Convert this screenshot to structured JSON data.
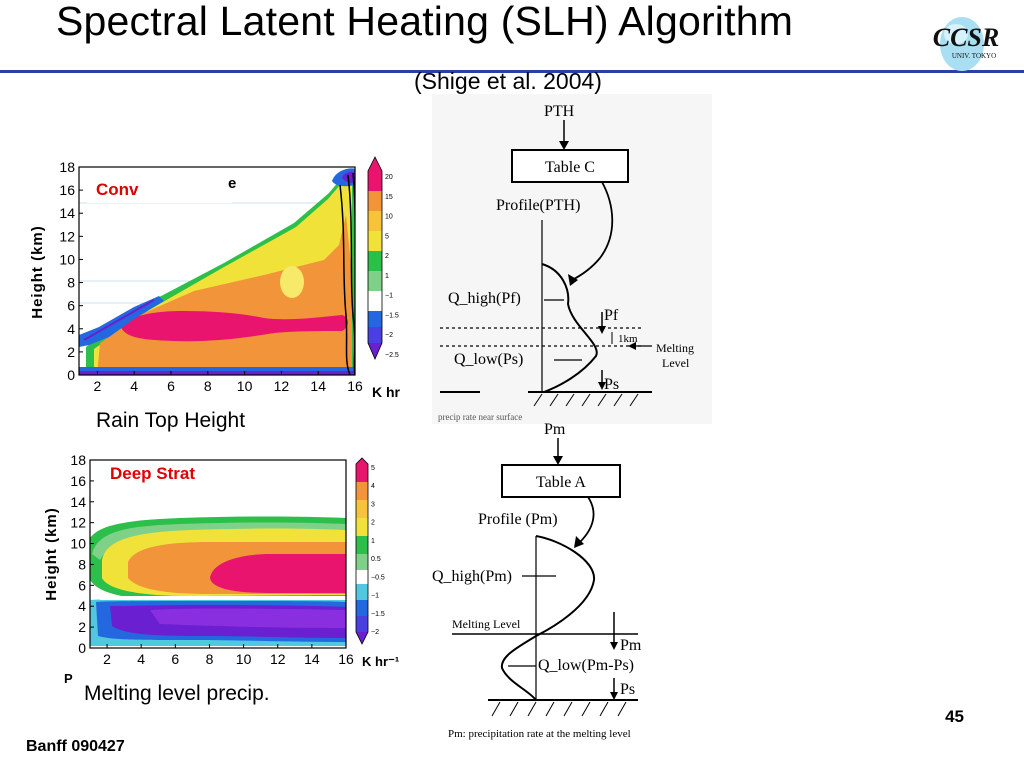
{
  "slide": {
    "title": "Spectral Latent Heating (SLH) Algorithm",
    "subtitle": "(Shige et al. 2004)",
    "logo_text": "CCSR",
    "logo_subtext": "UNIV. TOKYO",
    "number": "45",
    "footer": "Banff 090427"
  },
  "colors": {
    "title_rule": "#2b3fa8",
    "panel_label": "#e00000",
    "magenta": "#e8146e",
    "orange": "#f2943a",
    "yellow": "#f1e23a",
    "green": "#2cbf4a",
    "blue": "#2468e0",
    "purple": "#6a1fd0"
  },
  "conv_panel": {
    "label": "Conv",
    "partial_label": "e",
    "ylabel": "Height (km)",
    "yticks": [
      "0",
      "2",
      "4",
      "6",
      "8",
      "10",
      "12",
      "14",
      "16",
      "18"
    ],
    "xticks": [
      "2",
      "4",
      "6",
      "8",
      "10",
      "12",
      "14",
      "16"
    ],
    "units": "K  hr",
    "colorbar_ticks": [
      "20",
      "15",
      "10",
      "5",
      "2",
      "1",
      "−1",
      "−1.5",
      "−2",
      "−2.5"
    ],
    "caption": "Rain Top Height"
  },
  "strat_panel": {
    "label": "Deep Strat",
    "ylabel": "Height (km)",
    "yticks": [
      "0",
      "2",
      "4",
      "6",
      "8",
      "10",
      "12",
      "14",
      "16",
      "18"
    ],
    "xticks": [
      "2",
      "4",
      "6",
      "8",
      "10",
      "12",
      "14",
      "16"
    ],
    "units": "K  hr⁻¹",
    "colorbar_ticks": [
      "5",
      "4",
      "3",
      "2",
      "1",
      "0.5",
      "−0.5",
      "−1",
      "−1.5",
      "−2"
    ],
    "left_char": "P",
    "caption": "Melting level precip."
  },
  "diagram_c": {
    "input": "PTH",
    "table": "Table C",
    "profile": "Profile(PTH)",
    "q_high": "Q_high(Pf)",
    "q_low": "Q_low(Ps)",
    "pf": "Pf",
    "one_km": "1km",
    "melting_1": "Melting",
    "melting_2": "Level",
    "ps": "Ps",
    "bottom_fragment": "precip rate near surface"
  },
  "diagram_a": {
    "input": "Pm",
    "table": "Table A",
    "profile": "Profile (Pm)",
    "q_high": "Q_high(Pm)",
    "melting": "Melting Level",
    "pm": "Pm",
    "q_low": "Q_low(Pm-Ps)",
    "ps": "Ps",
    "note": "Pm: precipitation rate at the melting level"
  }
}
